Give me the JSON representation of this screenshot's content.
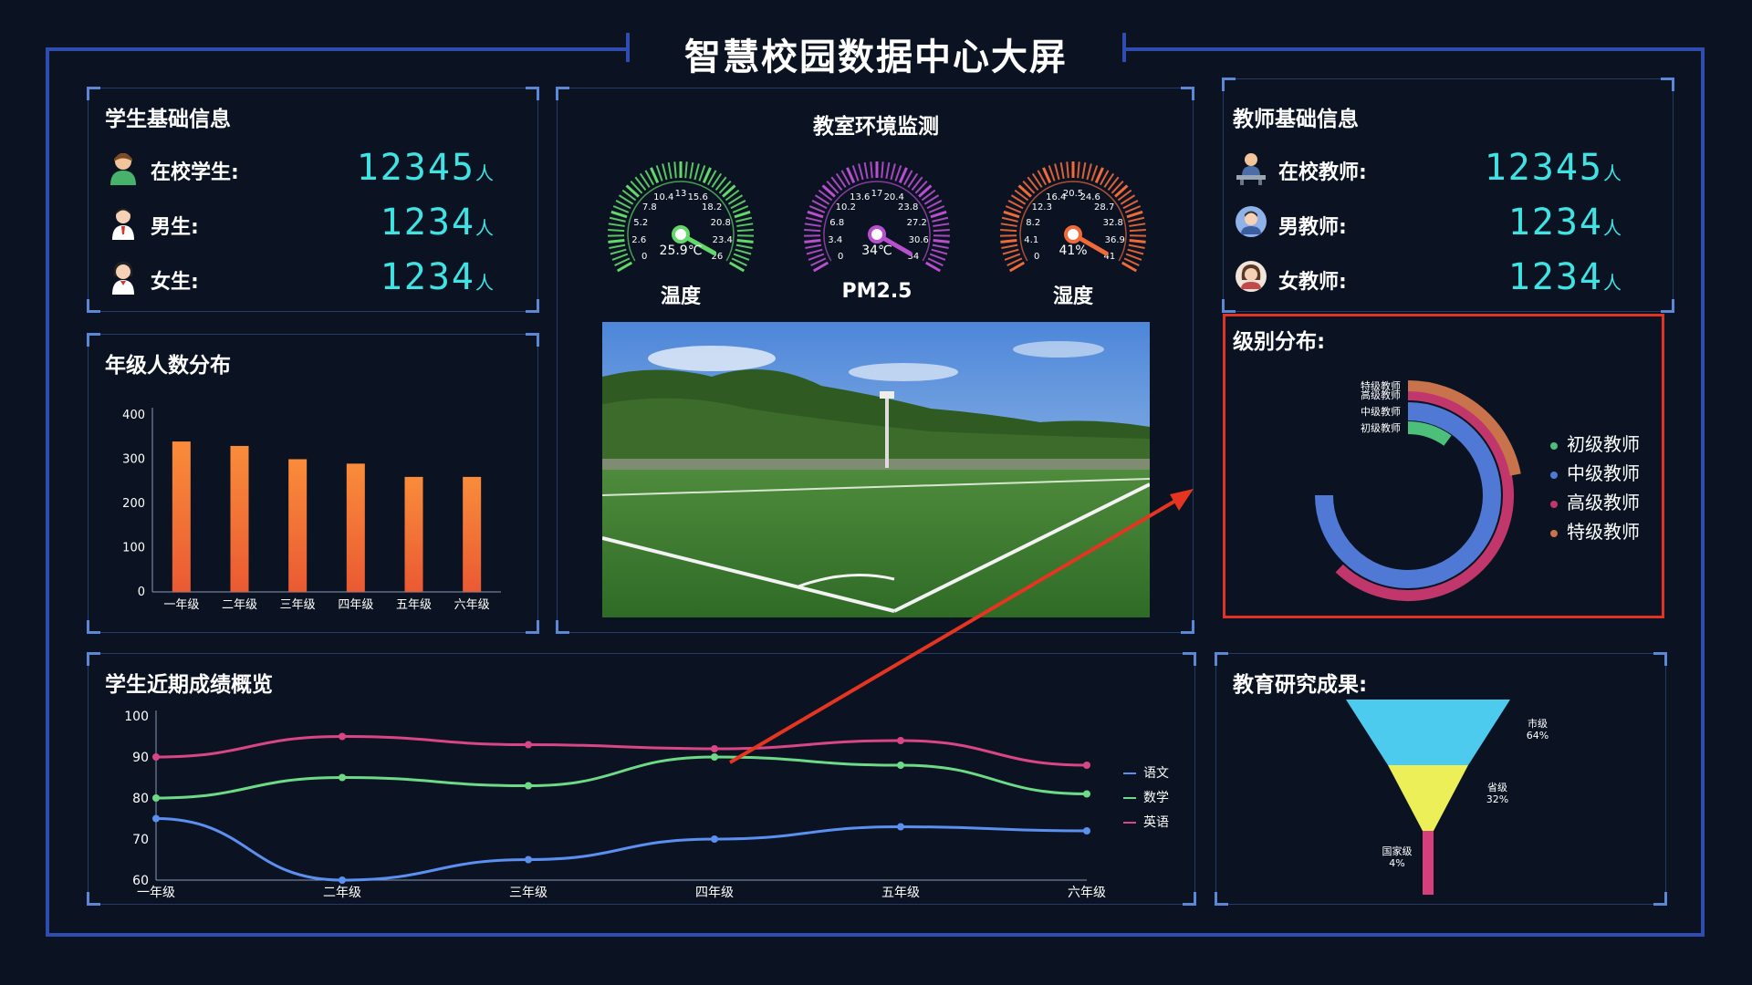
{
  "title": "智慧校园数据中心大屏",
  "student_info": {
    "title": "学生基础信息",
    "rows": [
      {
        "label": "在校学生:",
        "value": "12345",
        "unit": "人",
        "icon": "student-icon"
      },
      {
        "label": "男生:",
        "value": "1234",
        "unit": "人",
        "icon": "boy-icon"
      },
      {
        "label": "女生:",
        "value": "1234",
        "unit": "人",
        "icon": "girl-icon"
      }
    ]
  },
  "grade_distribution": {
    "title": "年级人数分布"
  },
  "environment": {
    "title": "教室环境监测",
    "gauges": [
      {
        "label": "温度",
        "value": 25.9,
        "display": "25.9℃",
        "max": 26,
        "ticks": [
          "0",
          "2.6",
          "5.2",
          "7.8",
          "10.4",
          "13",
          "15.6",
          "18.2",
          "20.8",
          "23.4",
          "26"
        ],
        "color": "#63d86b"
      },
      {
        "label": "PM2.5",
        "value": 34,
        "display": "34℃",
        "max": 34,
        "ticks": [
          "0",
          "3.4",
          "6.8",
          "10.2",
          "13.6",
          "17",
          "20.4",
          "23.8",
          "27.2",
          "30.6",
          "34"
        ],
        "color": "#b84fcf"
      },
      {
        "label": "湿度",
        "value": 41,
        "display": "41%",
        "max": 41,
        "ticks": [
          "0",
          "4.1",
          "8.2",
          "12.3",
          "16.4",
          "20.5",
          "24.6",
          "28.7",
          "32.8",
          "36.9",
          "41"
        ],
        "color": "#f26a3a"
      }
    ]
  },
  "teacher_info": {
    "title": "教师基础信息",
    "rows": [
      {
        "label": "在校教师:",
        "value": "12345",
        "unit": "人",
        "icon": "teacher-desk-icon"
      },
      {
        "label": "男教师:",
        "value": "1234",
        "unit": "人",
        "icon": "male-teacher-icon"
      },
      {
        "label": "女教师:",
        "value": "1234",
        "unit": "人",
        "icon": "female-teacher-icon"
      }
    ]
  },
  "level_distribution": {
    "title": "级别分布:",
    "legend": [
      {
        "name": "初级教师",
        "color": "#4cbf7a"
      },
      {
        "name": "中级教师",
        "color": "#4f79d4"
      },
      {
        "name": "高级教师",
        "color": "#c2376b"
      },
      {
        "name": "特级教师",
        "color": "#c8734c"
      }
    ]
  },
  "scores": {
    "title": "学生近期成绩概览"
  },
  "research": {
    "title": "教育研究成果:"
  },
  "chart_data": [
    {
      "type": "bar",
      "categories": [
        "一年级",
        "二年级",
        "三年级",
        "四年级",
        "五年级",
        "六年级"
      ],
      "values": [
        340,
        330,
        300,
        290,
        260,
        260
      ],
      "ylim": [
        0,
        400
      ],
      "yticks": [
        0,
        100,
        200,
        300,
        400
      ],
      "title": "",
      "xlabel": "",
      "ylabel": "",
      "colors": {
        "top": "#f98c3a",
        "bottom": "#ea5a33"
      }
    },
    {
      "type": "pie",
      "variant": "radial-bar",
      "categories": [
        "初级教师",
        "中级教师",
        "高级教师",
        "特级教师"
      ],
      "values": [
        10,
        75,
        62,
        22
      ],
      "colors": [
        "#4cbf7a",
        "#4f79d4",
        "#c2376b",
        "#c8734c"
      ]
    },
    {
      "type": "line",
      "x": [
        "一年级",
        "二年级",
        "三年级",
        "四年级",
        "五年级",
        "六年级"
      ],
      "ylim": [
        60,
        100
      ],
      "yticks": [
        60,
        70,
        80,
        90,
        100
      ],
      "series": [
        {
          "name": "语文",
          "values": [
            75,
            60,
            65,
            70,
            73,
            72
          ],
          "color": "#5b8ff0"
        },
        {
          "name": "数学",
          "values": [
            80,
            85,
            83,
            90,
            88,
            81
          ],
          "color": "#6ddb86"
        },
        {
          "name": "英语",
          "values": [
            90,
            95,
            93,
            92,
            94,
            88
          ],
          "color": "#d94685"
        }
      ]
    },
    {
      "type": "pie",
      "variant": "funnel",
      "categories": [
        "市级",
        "省级",
        "国家级"
      ],
      "values": [
        64,
        32,
        4
      ],
      "labels": [
        "64%",
        "32%",
        "4%"
      ],
      "colors": [
        "#4ccbee",
        "#ecef57",
        "#d63f7c"
      ]
    }
  ]
}
